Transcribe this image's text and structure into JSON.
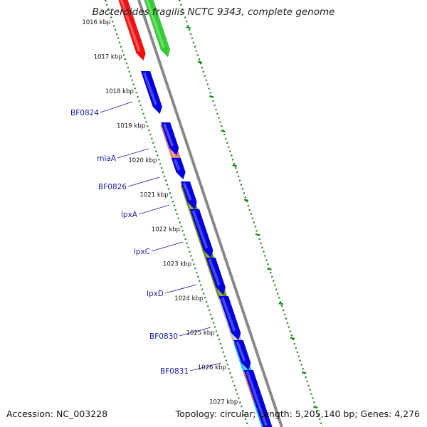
{
  "title": "Bacteroides fragilis NCTC 9343, complete genome",
  "footer": {
    "accession": "Accession: NC_003228",
    "summary": "Topology: circular; Length: 5,205,140 bp; Genes: 4,276"
  },
  "colors": {
    "backbone": "#888888",
    "dots": "#1e8c1e",
    "label": "#1a1aa6",
    "plus_strand": "#0000e0",
    "red": "#ee1111",
    "green": "#33cc33",
    "salmon": "#e88080",
    "olive": "#6b8e23",
    "gray": "#c0c0c0",
    "cyan": "#22c8f0"
  },
  "kbp_ticks": [
    "1016 kbp",
    "1017 kbp",
    "1018 kbp",
    "1019 kbp",
    "1020 kbp",
    "1021 kbp",
    "1022 kbp",
    "1023 kbp",
    "1024 kbp",
    "1025 kbp",
    "1026 kbp",
    "1027 kbp"
  ],
  "gene_labels": [
    "BF0824",
    "miaA",
    "BF0826",
    "lpxA",
    "lpxC",
    "lpxD",
    "BF0830",
    "BF0831"
  ]
}
